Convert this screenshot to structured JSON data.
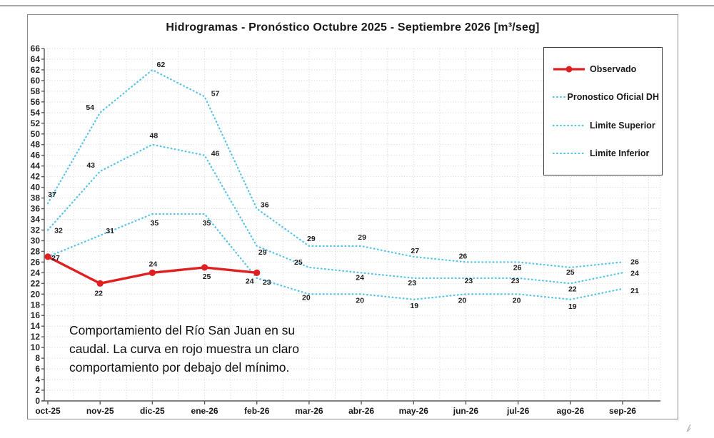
{
  "chart_data": {
    "type": "line",
    "title": "Hidrogramas - Pronóstico Octubre 2025 - Septiembre 2026 [m³/seg]",
    "categories": [
      "oct-25",
      "nov-25",
      "dic-25",
      "ene-26",
      "feb-26",
      "mar-26",
      "abr-26",
      "may-26",
      "jun-26",
      "jul-26",
      "ago-26",
      "sep-26"
    ],
    "y_axis": {
      "min": 0,
      "max": 66,
      "step": 2
    },
    "grid": true,
    "legend_position": "top-right",
    "series": [
      {
        "name": "Observado",
        "color": "#e02020",
        "style": "solid",
        "marker": "circle",
        "values": [
          27,
          22,
          24,
          25,
          24,
          null,
          null,
          null,
          null,
          null,
          null,
          null
        ]
      },
      {
        "name": "Pronostico Oficial DH",
        "color": "#58c4e8",
        "style": "dotted",
        "marker": "none",
        "values": [
          32,
          43,
          48,
          46,
          29,
          25,
          24,
          23,
          23,
          23,
          22,
          24
        ]
      },
      {
        "name": "Limite Superior",
        "color": "#58c4e8",
        "style": "dotted",
        "marker": "none",
        "values": [
          37,
          54,
          62,
          57,
          36,
          29,
          29,
          27,
          26,
          26,
          25,
          26
        ]
      },
      {
        "name": "Limite Inferior",
        "color": "#58c4e8",
        "style": "dotted",
        "marker": "none",
        "values": [
          27,
          31,
          35,
          35,
          23,
          20,
          20,
          19,
          20,
          20,
          19,
          21
        ],
        "labels": [
          null,
          31,
          35,
          35,
          23,
          20,
          20,
          19,
          20,
          20,
          19,
          21
        ]
      }
    ]
  },
  "annotation": {
    "lines": [
      "Comportamiento del Río San Juan en su",
      "caudal. La curva en rojo muestra un claro",
      "comportamiento por debajo del mínimo."
    ]
  }
}
